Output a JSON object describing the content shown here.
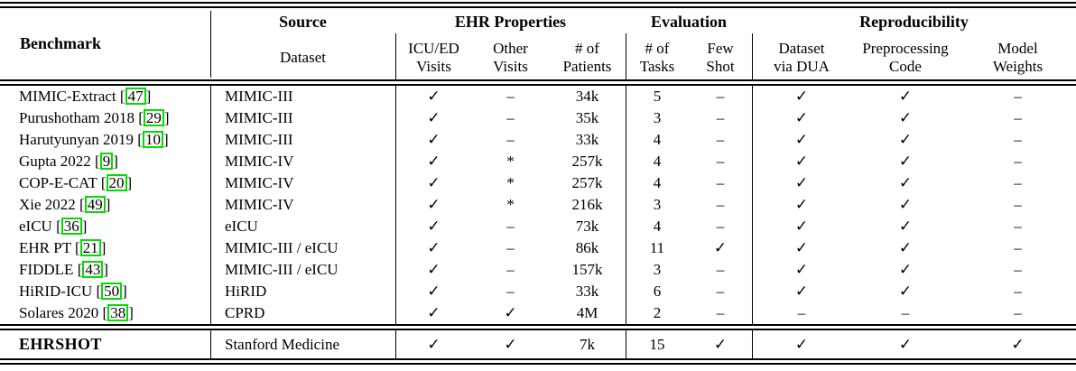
{
  "table": {
    "header": {
      "benchmark": "Benchmark",
      "source_group": "Source",
      "source_sub": "Dataset",
      "ehr_group": "EHR Properties",
      "eval_group": "Evaluation",
      "repro_group": "Reproducibility",
      "subs": [
        {
          "l1": "ICU/ED",
          "l2": "Visits"
        },
        {
          "l1": "Other",
          "l2": "Visits"
        },
        {
          "l1": "# of",
          "l2": "Patients"
        },
        {
          "l1": "# of",
          "l2": "Tasks"
        },
        {
          "l1": "Few",
          "l2": "Shot"
        },
        {
          "l1": "Dataset",
          "l2": "via DUA"
        },
        {
          "l1": "Preprocessing",
          "l2": "Code"
        },
        {
          "l1": "Model",
          "l2": "Weights"
        }
      ]
    },
    "col_keys": [
      "icu-ed-visits",
      "other-visits",
      "num-patients",
      "num-tasks",
      "few-shot",
      "dataset-via-dua",
      "preprocessing-code",
      "model-weights"
    ],
    "symbols": {
      "yes": "✓",
      "no": "–",
      "partial": "*"
    },
    "rows": [
      {
        "benchmark": "MIMIC-Extract",
        "cite": "47",
        "dataset": "MIMIC-III",
        "values": [
          "✓",
          "–",
          "34k",
          "5",
          "–",
          "✓",
          "✓",
          "–"
        ]
      },
      {
        "benchmark": "Purushotham 2018",
        "cite": "29",
        "dataset": "MIMIC-III",
        "values": [
          "✓",
          "–",
          "35k",
          "3",
          "–",
          "✓",
          "✓",
          "–"
        ]
      },
      {
        "benchmark": "Harutyunyan 2019",
        "cite": "10",
        "dataset": "MIMIC-III",
        "values": [
          "✓",
          "–",
          "33k",
          "4",
          "–",
          "✓",
          "✓",
          "–"
        ]
      },
      {
        "benchmark": "Gupta 2022",
        "cite": "9",
        "dataset": "MIMIC-IV",
        "values": [
          "✓",
          "*",
          "257k",
          "4",
          "–",
          "✓",
          "✓",
          "–"
        ]
      },
      {
        "benchmark": "COP-E-CAT",
        "cite": "20",
        "dataset": "MIMIC-IV",
        "values": [
          "✓",
          "*",
          "257k",
          "4",
          "–",
          "✓",
          "✓",
          "–"
        ]
      },
      {
        "benchmark": "Xie 2022",
        "cite": "49",
        "dataset": "MIMIC-IV",
        "values": [
          "✓",
          "*",
          "216k",
          "3",
          "–",
          "✓",
          "✓",
          "–"
        ]
      },
      {
        "benchmark": "eICU",
        "cite": "36",
        "dataset": "eICU",
        "values": [
          "✓",
          "–",
          "73k",
          "4",
          "–",
          "✓",
          "✓",
          "–"
        ]
      },
      {
        "benchmark": "EHR PT",
        "cite": "21",
        "dataset": "MIMIC-III / eICU",
        "values": [
          "✓",
          "–",
          "86k",
          "11",
          "✓",
          "✓",
          "✓",
          "–"
        ]
      },
      {
        "benchmark": "FIDDLE",
        "cite": "43",
        "dataset": "MIMIC-III / eICU",
        "values": [
          "✓",
          "–",
          "157k",
          "3",
          "–",
          "✓",
          "✓",
          "–"
        ]
      },
      {
        "benchmark": "HiRID-ICU",
        "cite": "50",
        "dataset": "HiRID",
        "values": [
          "✓",
          "–",
          "33k",
          "6",
          "–",
          "✓",
          "✓",
          "–"
        ]
      },
      {
        "benchmark": "Solares 2020",
        "cite": "38",
        "dataset": "CPRD",
        "values": [
          "✓",
          "✓",
          "4M",
          "2",
          "–",
          "–",
          "–",
          "–"
        ]
      }
    ],
    "final_row": {
      "benchmark": "EHRSHOT",
      "cite": null,
      "dataset": "Stanford Medicine",
      "values": [
        "✓",
        "✓",
        "7k",
        "15",
        "✓",
        "✓",
        "✓",
        "✓"
      ]
    }
  },
  "colors": {
    "citation_box": "#00dd00",
    "text": "#000000",
    "rule": "#000000",
    "background": "#ffffff"
  }
}
